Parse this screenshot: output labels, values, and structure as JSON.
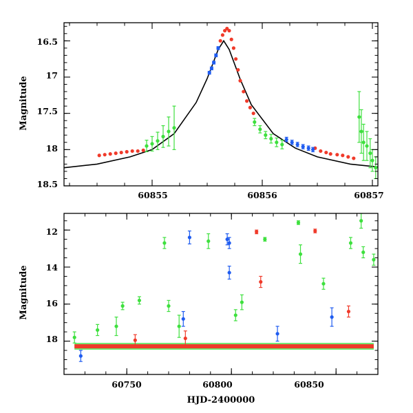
{
  "chart_data": [
    {
      "type": "scatter",
      "xlabel": "",
      "ylabel": "Magnitude",
      "xlim": [
        60854.2,
        60857.05
      ],
      "ylim": [
        18.5,
        16.25
      ],
      "y_inverted": true,
      "xticks": [
        "60855",
        "60856",
        "60857"
      ],
      "yticks": [
        "16.5",
        "17",
        "17.5",
        "18",
        "18.5"
      ],
      "xtick_values": [
        60855,
        60856,
        60857
      ],
      "ytick_values": [
        16.5,
        17,
        17.5,
        18,
        18.5
      ],
      "grid": false,
      "legend": false,
      "colors": {
        "red": "#f03a2a",
        "blue": "#1f5cf0",
        "green": "#3ee03e",
        "model": "#000000"
      },
      "series": [
        {
          "color": "red",
          "x": [
            60854.52,
            60854.57,
            60854.62,
            60854.67,
            60854.72,
            60854.77,
            60854.82,
            60854.87,
            60854.92,
            60855.62,
            60855.64,
            60855.66,
            60855.68,
            60855.7,
            60855.72,
            60855.74,
            60855.76,
            60855.78,
            60855.8,
            60855.83,
            60855.86,
            60855.89,
            60855.92,
            60856.48,
            60856.53,
            60856.58,
            60856.62,
            60856.68,
            60856.73,
            60856.78,
            60856.83
          ],
          "y": [
            18.08,
            18.07,
            18.06,
            18.05,
            18.04,
            18.03,
            18.02,
            18.02,
            18.01,
            16.5,
            16.42,
            16.36,
            16.33,
            16.36,
            16.48,
            16.6,
            16.75,
            16.9,
            17.05,
            17.2,
            17.33,
            17.42,
            17.5,
            17.98,
            18.02,
            18.04,
            18.06,
            18.07,
            18.08,
            18.1,
            18.12
          ]
        },
        {
          "color": "blue",
          "x": [
            60855.52,
            60855.54,
            60855.56,
            60855.58,
            60855.6,
            60856.22,
            60856.27,
            60856.32,
            60856.37,
            60856.42,
            60856.46
          ],
          "y": [
            16.94,
            16.88,
            16.8,
            16.7,
            16.6,
            17.86,
            17.9,
            17.93,
            17.96,
            17.98,
            18.0
          ],
          "errors": [
            0.02,
            0.02,
            0.02,
            0.02,
            0.02,
            0.03,
            0.03,
            0.03,
            0.03,
            0.03,
            0.03
          ]
        },
        {
          "color": "green",
          "x": [
            60854.95,
            60855.0,
            60855.05,
            60855.1,
            60855.15,
            60855.2,
            60855.93,
            60855.98,
            60856.03,
            60856.08,
            60856.13,
            60856.18,
            60856.88,
            60856.9,
            60856.92,
            60856.95,
            60856.98,
            60857.0,
            60857.03
          ],
          "y": [
            17.95,
            17.92,
            17.88,
            17.82,
            17.75,
            17.7,
            17.62,
            17.72,
            17.8,
            17.85,
            17.9,
            17.93,
            17.55,
            17.75,
            17.9,
            17.95,
            18.05,
            18.15,
            18.25
          ],
          "errors": [
            0.08,
            0.1,
            0.12,
            0.15,
            0.2,
            0.3,
            0.05,
            0.05,
            0.05,
            0.06,
            0.06,
            0.06,
            0.35,
            0.3,
            0.25,
            0.2,
            0.2,
            0.15,
            0.15
          ]
        }
      ],
      "model_curve": {
        "color": "model",
        "peak_x": 60855.65,
        "peak_y": 16.5,
        "baseline_y": 18.32,
        "x": [
          60854.2,
          60854.5,
          60854.8,
          60855.0,
          60855.2,
          60855.4,
          60855.5,
          60855.6,
          60855.65,
          60855.7,
          60855.8,
          60855.9,
          60856.1,
          60856.3,
          60856.5,
          60856.8,
          60857.05
        ],
        "y": [
          18.25,
          18.2,
          18.1,
          18.0,
          17.78,
          17.35,
          17.02,
          16.62,
          16.5,
          16.62,
          17.03,
          17.38,
          17.78,
          17.98,
          18.1,
          18.2,
          18.24
        ]
      }
    },
    {
      "type": "scatter",
      "xlabel": "HJD-2400000",
      "ylabel": "Magnitude",
      "xlim": [
        60720,
        60870
      ],
      "ylim": [
        19.8,
        11.1
      ],
      "y_inverted": true,
      "xticks": [
        "60750",
        "60800",
        "60850"
      ],
      "yticks": [
        "12",
        "14",
        "16",
        "18"
      ],
      "xtick_values": [
        60750,
        60800,
        60850
      ],
      "ytick_values": [
        12,
        14,
        16,
        18
      ],
      "grid": false,
      "legend": false,
      "colors": {
        "red": "#f03a2a",
        "blue": "#1f5cf0",
        "green": "#3ee03e"
      },
      "baseline": {
        "x_start": 60725,
        "x_end": 60868,
        "y": 18.28
      },
      "series": [
        {
          "color": "red",
          "x": [
            60754,
            60778,
            60812,
            60814,
            60840,
            60856
          ],
          "y": [
            17.95,
            17.85,
            12.1,
            14.8,
            12.05,
            16.4
          ],
          "errors": [
            0.3,
            0.4,
            0.1,
            0.3,
            0.1,
            0.3
          ]
        },
        {
          "color": "blue",
          "x": [
            60728,
            60777,
            60780,
            60798,
            60799,
            60799,
            60822,
            60848
          ],
          "y": [
            18.8,
            16.8,
            12.4,
            12.5,
            12.7,
            14.3,
            17.6,
            16.7
          ],
          "errors": [
            0.3,
            0.4,
            0.35,
            0.3,
            0.3,
            0.35,
            0.4,
            0.5
          ]
        },
        {
          "color": "green",
          "x": [
            60725,
            60736,
            60745,
            60748,
            60756,
            60768,
            60770,
            60775,
            60789,
            60802,
            60805,
            60816,
            60832,
            60833,
            60844,
            60857,
            60862,
            60863,
            60868
          ],
          "y": [
            17.8,
            17.4,
            17.2,
            16.1,
            15.8,
            12.7,
            16.1,
            17.2,
            12.6,
            16.6,
            15.9,
            12.5,
            11.6,
            13.3,
            14.9,
            12.7,
            11.5,
            13.2,
            13.6
          ],
          "errors": [
            0.3,
            0.3,
            0.5,
            0.2,
            0.2,
            0.3,
            0.3,
            0.6,
            0.4,
            0.3,
            0.4,
            0.1,
            0.1,
            0.5,
            0.3,
            0.3,
            0.4,
            0.3,
            0.3
          ]
        }
      ]
    }
  ]
}
